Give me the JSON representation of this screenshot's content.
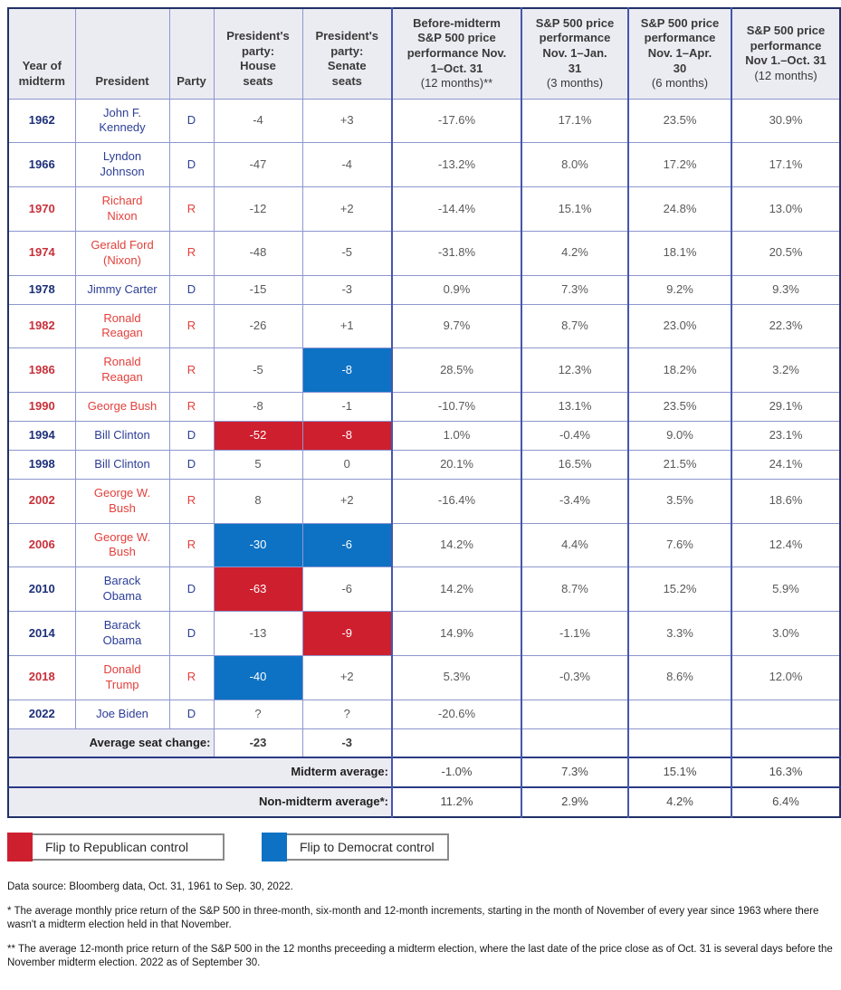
{
  "chart_data": {
    "type": "table",
    "headers": [
      {
        "label": "Year of\nmidterm",
        "sub": ""
      },
      {
        "label": "President",
        "sub": ""
      },
      {
        "label": "Party",
        "sub": ""
      },
      {
        "label": "President's\nparty:\nHouse\nseats",
        "sub": ""
      },
      {
        "label": "President's\nparty:\nSenate\nseats",
        "sub": ""
      },
      {
        "label": "Before-midterm\nS&P 500 price\nperformance Nov.\n1–Oct. 31",
        "sub": "(12 months)**"
      },
      {
        "label": "S&P 500 price\nperformance\nNov. 1–Jan.\n31",
        "sub": "(3 months)"
      },
      {
        "label": "S&P 500 price\nperformance\nNov. 1–Apr.\n30",
        "sub": "(6 months)"
      },
      {
        "label": "S&P 500 price\nperformance\nNov 1.–Oct. 31",
        "sub": "(12 months)"
      }
    ],
    "rows": [
      {
        "year": "1962",
        "president": "John F.\nKennedy",
        "party": "D",
        "house": "-4",
        "senate": "+3",
        "house_flip": null,
        "senate_flip": null,
        "values": [
          "-17.6%",
          "17.1%",
          "23.5%",
          "30.9%"
        ]
      },
      {
        "year": "1966",
        "president": "Lyndon\nJohnson",
        "party": "D",
        "house": "-47",
        "senate": "-4",
        "house_flip": null,
        "senate_flip": null,
        "values": [
          "-13.2%",
          "8.0%",
          "17.2%",
          "17.1%"
        ]
      },
      {
        "year": "1970",
        "president": "Richard\nNixon",
        "party": "R",
        "house": "-12",
        "senate": "+2",
        "house_flip": null,
        "senate_flip": null,
        "values": [
          "-14.4%",
          "15.1%",
          "24.8%",
          "13.0%"
        ]
      },
      {
        "year": "1974",
        "president": "Gerald Ford\n(Nixon)",
        "party": "R",
        "house": "-48",
        "senate": "-5",
        "house_flip": null,
        "senate_flip": null,
        "values": [
          "-31.8%",
          "4.2%",
          "18.1%",
          "20.5%"
        ]
      },
      {
        "year": "1978",
        "president": "Jimmy Carter",
        "party": "D",
        "house": "-15",
        "senate": "-3",
        "house_flip": null,
        "senate_flip": null,
        "values": [
          "0.9%",
          "7.3%",
          "9.2%",
          "9.3%"
        ]
      },
      {
        "year": "1982",
        "president": "Ronald\nReagan",
        "party": "R",
        "house": "-26",
        "senate": "+1",
        "house_flip": null,
        "senate_flip": null,
        "values": [
          "9.7%",
          "8.7%",
          "23.0%",
          "22.3%"
        ]
      },
      {
        "year": "1986",
        "president": "Ronald\nReagan",
        "party": "R",
        "house": "-5",
        "senate": "-8",
        "house_flip": null,
        "senate_flip": "blue",
        "values": [
          "28.5%",
          "12.3%",
          "18.2%",
          "3.2%"
        ]
      },
      {
        "year": "1990",
        "president": "George Bush",
        "party": "R",
        "house": "-8",
        "senate": "-1",
        "house_flip": null,
        "senate_flip": null,
        "values": [
          "-10.7%",
          "13.1%",
          "23.5%",
          "29.1%"
        ]
      },
      {
        "year": "1994",
        "president": "Bill Clinton",
        "party": "D",
        "house": "-52",
        "senate": "-8",
        "house_flip": "red",
        "senate_flip": "red",
        "values": [
          "1.0%",
          "-0.4%",
          "9.0%",
          "23.1%"
        ]
      },
      {
        "year": "1998",
        "president": "Bill Clinton",
        "party": "D",
        "house": "5",
        "senate": "0",
        "house_flip": null,
        "senate_flip": null,
        "values": [
          "20.1%",
          "16.5%",
          "21.5%",
          "24.1%"
        ]
      },
      {
        "year": "2002",
        "president": "George W.\nBush",
        "party": "R",
        "house": "8",
        "senate": "+2",
        "house_flip": null,
        "senate_flip": null,
        "values": [
          "-16.4%",
          "-3.4%",
          "3.5%",
          "18.6%"
        ]
      },
      {
        "year": "2006",
        "president": "George W.\nBush",
        "party": "R",
        "house": "-30",
        "senate": "-6",
        "house_flip": "blue",
        "senate_flip": "blue",
        "values": [
          "14.2%",
          "4.4%",
          "7.6%",
          "12.4%"
        ]
      },
      {
        "year": "2010",
        "president": "Barack\nObama",
        "party": "D",
        "house": "-63",
        "senate": "-6",
        "house_flip": "red",
        "senate_flip": null,
        "values": [
          "14.2%",
          "8.7%",
          "15.2%",
          "5.9%"
        ]
      },
      {
        "year": "2014",
        "president": "Barack\nObama",
        "party": "D",
        "house": "-13",
        "senate": "-9",
        "house_flip": null,
        "senate_flip": "red",
        "values": [
          "14.9%",
          "-1.1%",
          "3.3%",
          "3.0%"
        ]
      },
      {
        "year": "2018",
        "president": "Donald\nTrump",
        "party": "R",
        "house": "-40",
        "senate": "+2",
        "house_flip": "blue",
        "senate_flip": null,
        "values": [
          "5.3%",
          "-0.3%",
          "8.6%",
          "12.0%"
        ]
      },
      {
        "year": "2022",
        "president": "Joe Biden",
        "party": "D",
        "house": "?",
        "senate": "?",
        "house_flip": null,
        "senate_flip": null,
        "values": [
          "-20.6%",
          "",
          "",
          ""
        ]
      }
    ],
    "summary": {
      "avg_seat": {
        "label": "Average seat change:",
        "house": "-23",
        "senate": "-3"
      },
      "midterm": {
        "label": "Midterm average:",
        "values": [
          "-1.0%",
          "7.3%",
          "15.1%",
          "16.3%"
        ]
      },
      "non_midterm": {
        "label": "Non-midterm average*:",
        "values": [
          "11.2%",
          "2.9%",
          "4.2%",
          "6.4%"
        ]
      }
    }
  },
  "legend": [
    {
      "label": "Flip to Republican control",
      "color": "#ce1f2f"
    },
    {
      "label": "Flip to Democrat control",
      "color": "#0d72c3"
    }
  ],
  "footnotes": {
    "data_source": "Data source: Bloomberg data, Oct. 31, 1961 to Sep. 30, 2022.",
    "note1": "* The average monthly price return of the S&P 500 in three-month, six-month and 12-month increments, starting in the month of November of every year since 1963 where there wasn't a midterm election held in that November.",
    "note2": "** The average 12-month price return of the S&P 500 in the 12 months preceeding a midterm election, where the last date of the price close as of Oct. 31 is several days before the November midterm election. 2022 as of September 30."
  },
  "colors": {
    "flip_republican_fill": "#ce1f2f",
    "flip_democrat_fill": "#0d72c3",
    "democrat_text": "#2c3e96",
    "democrat_year_text": "#1d2f78",
    "republican_text": "#e2403b",
    "republican_year_text": "#c8303a",
    "value_text": "#595959",
    "header_background": "#ebebf2",
    "border_light": "#8d96cf",
    "border_strong": "#4656ac",
    "border_outer": "#1f3166"
  }
}
